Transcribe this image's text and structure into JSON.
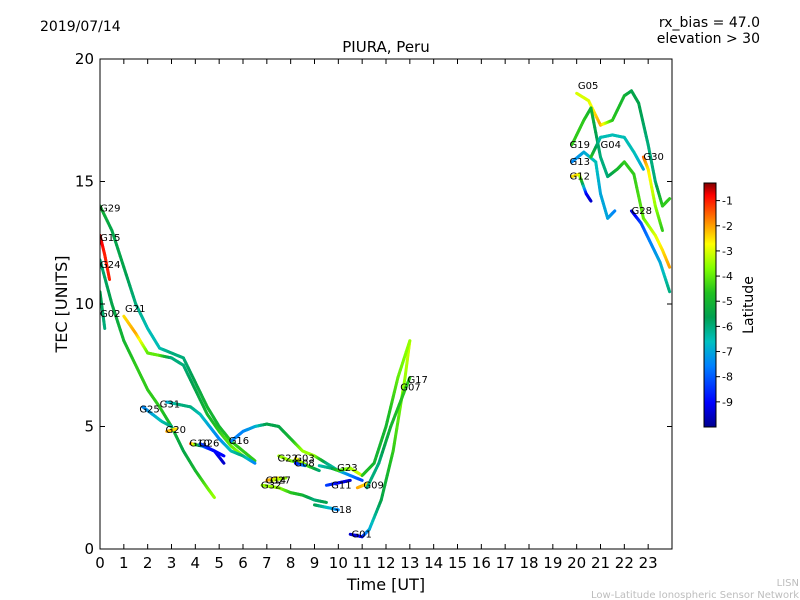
{
  "date": "2019/07/14",
  "rx_bias_text": "rx_bias = 47.0",
  "elevation_text": "elevation > 30",
  "credit_line1": "LISN",
  "credit_line2": "Low-Latitude Ionospheric Sensor Network",
  "chart_data": {
    "type": "scatter",
    "title": "PIURA, Peru",
    "xlabel": "Time [UT]",
    "ylabel": "TEC [UNITS]",
    "xlim": [
      0,
      24
    ],
    "ylim": [
      0,
      20
    ],
    "xticks": [
      0,
      1,
      2,
      3,
      4,
      5,
      6,
      7,
      8,
      9,
      10,
      11,
      12,
      13,
      14,
      15,
      16,
      17,
      18,
      19,
      20,
      21,
      22,
      23
    ],
    "yticks": [
      0,
      5,
      10,
      15,
      20
    ],
    "grid": false,
    "colorbar": {
      "label": "Latitude",
      "range": [
        -10,
        -0.3
      ],
      "ticks": [
        -1,
        -2,
        -3,
        -4,
        -5,
        -6,
        -7,
        -8,
        -9
      ],
      "colormap": [
        "#00008f",
        "#0000ff",
        "#0080ff",
        "#00c0c0",
        "#00a050",
        "#20c020",
        "#80ff00",
        "#ffff00",
        "#ff8000",
        "#ff0000",
        "#800000"
      ]
    },
    "series": [
      {
        "name": "G29",
        "points": [
          [
            0.0,
            14.0,
            -5.5
          ],
          [
            0.5,
            13.0,
            -6.0
          ],
          [
            1.0,
            11.5,
            -6.0
          ],
          [
            1.5,
            10.0,
            -6.5
          ],
          [
            2.0,
            9.0,
            -7.0
          ],
          [
            2.5,
            8.2,
            -7.0
          ],
          [
            3.0,
            8.0,
            -6.5
          ],
          [
            3.5,
            7.8,
            -6.5
          ],
          [
            4.0,
            6.8,
            -6.0
          ],
          [
            4.5,
            5.8,
            -5.5
          ],
          [
            5.0,
            5.0,
            -5.5
          ],
          [
            5.5,
            4.4,
            -5.0
          ],
          [
            6.0,
            4.0,
            -5.0
          ],
          [
            6.5,
            3.6,
            -5.0
          ]
        ],
        "label_at": [
          0.0,
          13.9
        ]
      },
      {
        "name": "G15",
        "points": [
          [
            0.0,
            12.8,
            -1.0
          ],
          [
            0.2,
            12.0,
            -1.5
          ],
          [
            0.4,
            11.0,
            -1.5
          ]
        ],
        "label_at": [
          0.0,
          12.7
        ]
      },
      {
        "name": "G24",
        "points": [
          [
            0.0,
            11.8,
            -6.5
          ],
          [
            0.5,
            10.0,
            -6.0
          ],
          [
            1.0,
            8.5,
            -5.5
          ],
          [
            1.5,
            7.5,
            -5.0
          ],
          [
            2.0,
            6.5,
            -5.0
          ],
          [
            2.5,
            5.8,
            -5.0
          ],
          [
            3.0,
            5.0,
            -5.5
          ],
          [
            3.5,
            4.0,
            -6.0
          ],
          [
            4.0,
            3.2,
            -5.5
          ],
          [
            4.5,
            2.5,
            -4.5
          ],
          [
            4.8,
            2.1,
            -4.0
          ]
        ],
        "label_at": [
          0.0,
          11.6
        ]
      },
      {
        "name": "G02",
        "points": [
          [
            0.0,
            10.5,
            -6.0
          ],
          [
            0.2,
            9.0,
            -6.5
          ]
        ],
        "label_at": [
          0.0,
          9.6
        ]
      },
      {
        "name": "G21",
        "points": [
          [
            1.0,
            9.5,
            -3.0
          ],
          [
            1.5,
            8.8,
            -2.5
          ],
          [
            2.0,
            8.0,
            -4.5
          ],
          [
            2.5,
            7.9,
            -4.5
          ],
          [
            3.0,
            7.8,
            -6.5
          ],
          [
            3.5,
            7.5,
            -6.5
          ],
          [
            4.0,
            6.5,
            -6.0
          ],
          [
            4.5,
            5.5,
            -5.5
          ],
          [
            5.0,
            4.8,
            -5.0
          ],
          [
            5.5,
            4.2,
            -4.5
          ],
          [
            6.0,
            3.8,
            -4.0
          ]
        ],
        "label_at": [
          1.05,
          9.8
        ]
      },
      {
        "name": "G25",
        "points": [
          [
            1.8,
            5.8,
            -8.0
          ],
          [
            2.2,
            5.5,
            -7.5
          ],
          [
            2.6,
            5.2,
            -7.0
          ],
          [
            3.0,
            5.0,
            -6.5
          ]
        ],
        "label_at": [
          1.65,
          5.7
        ]
      },
      {
        "name": "G31",
        "points": [
          [
            2.8,
            6.0,
            -7.5
          ],
          [
            3.3,
            5.9,
            -6.5
          ],
          [
            3.8,
            5.8,
            -6.5
          ],
          [
            4.2,
            5.5,
            -7.0
          ],
          [
            4.6,
            5.0,
            -7.5
          ],
          [
            5.0,
            4.5,
            -8.0
          ],
          [
            5.5,
            4.0,
            -7.0
          ],
          [
            6.0,
            3.8,
            -6.5
          ],
          [
            6.5,
            3.5,
            -8.0
          ]
        ],
        "label_at": [
          2.5,
          5.9
        ]
      },
      {
        "name": "G20",
        "points": [
          [
            2.8,
            4.8,
            -2.5
          ],
          [
            3.2,
            4.9,
            -3.0
          ]
        ],
        "label_at": [
          2.75,
          4.85
        ]
      },
      {
        "name": "G10",
        "points": [
          [
            3.8,
            4.3,
            -1.5
          ],
          [
            4.3,
            4.2,
            -8.0
          ],
          [
            4.8,
            4.0,
            -9.0
          ],
          [
            5.2,
            3.5,
            -9.5
          ]
        ],
        "label_at": [
          3.75,
          4.3
        ]
      },
      {
        "name": "G26",
        "points": [
          [
            4.2,
            4.3,
            -8.5
          ],
          [
            4.8,
            4.0,
            -9.0
          ],
          [
            5.2,
            3.8,
            -9.0
          ]
        ],
        "label_at": [
          4.15,
          4.3
        ]
      },
      {
        "name": "G16",
        "points": [
          [
            5.5,
            4.4,
            -8.0
          ],
          [
            6.0,
            4.8,
            -8.0
          ],
          [
            6.5,
            5.0,
            -7.5
          ],
          [
            7.0,
            5.1,
            -6.0
          ],
          [
            7.5,
            5.0,
            -6.0
          ],
          [
            8.0,
            4.5,
            -5.5
          ],
          [
            8.5,
            4.0,
            -4.0
          ],
          [
            9.0,
            3.8,
            -4.0
          ],
          [
            9.5,
            3.5,
            -6.5
          ],
          [
            10.0,
            3.2,
            -7.0
          ],
          [
            10.5,
            3.0,
            -8.0
          ],
          [
            11.0,
            2.8,
            -8.5
          ]
        ],
        "label_at": [
          5.4,
          4.4
        ]
      },
      {
        "name": "G22",
        "points": [
          [
            7.5,
            3.8,
            -4.0
          ],
          [
            8.0,
            3.6,
            -4.0
          ],
          [
            8.5,
            3.5,
            -6.0
          ]
        ],
        "label_at": [
          7.45,
          3.7
        ]
      },
      {
        "name": "G03",
        "points": [
          [
            8.2,
            3.7,
            -3.0
          ],
          [
            8.7,
            3.4,
            -4.5
          ],
          [
            9.2,
            3.2,
            -6.5
          ]
        ],
        "label_at": [
          8.15,
          3.7
        ]
      },
      {
        "name": "G08",
        "points": [
          [
            8.2,
            3.5,
            -9.0
          ],
          [
            8.6,
            3.4,
            -8.0
          ]
        ],
        "label_at": [
          8.15,
          3.5
        ]
      },
      {
        "name": "G14",
        "points": [
          [
            7.0,
            2.8,
            -2.5
          ],
          [
            7.5,
            2.9,
            -3.0
          ]
        ],
        "label_at": [
          6.95,
          2.8
        ]
      },
      {
        "name": "G27",
        "points": [
          [
            7.2,
            2.8,
            -3.5
          ],
          [
            7.8,
            2.9,
            -4.0
          ]
        ],
        "label_at": [
          7.15,
          2.8
        ]
      },
      {
        "name": "G32",
        "points": [
          [
            6.8,
            2.6,
            -4.0
          ],
          [
            7.5,
            2.5,
            -4.0
          ],
          [
            8.0,
            2.3,
            -5.0
          ],
          [
            8.5,
            2.2,
            -5.5
          ],
          [
            9.0,
            2.0,
            -6.5
          ],
          [
            9.5,
            1.9,
            -6.0
          ]
        ],
        "label_at": [
          6.75,
          2.6
        ]
      },
      {
        "name": "G23",
        "points": [
          [
            9.2,
            3.4,
            -7.0
          ],
          [
            9.7,
            3.3,
            -6.5
          ],
          [
            10.0,
            3.2,
            -5.0
          ],
          [
            10.5,
            3.3,
            -4.0
          ],
          [
            11.0,
            3.0,
            -3.5
          ]
        ],
        "label_at": [
          9.95,
          3.3
        ]
      },
      {
        "name": "G11",
        "points": [
          [
            9.5,
            2.6,
            -8.5
          ],
          [
            10.0,
            2.7,
            -9.0
          ],
          [
            10.5,
            2.8,
            -9.5
          ]
        ],
        "label_at": [
          9.7,
          2.6
        ]
      },
      {
        "name": "G09",
        "points": [
          [
            10.8,
            2.5,
            -2.5
          ],
          [
            11.3,
            2.7,
            -3.0
          ]
        ],
        "label_at": [
          11.05,
          2.6
        ]
      },
      {
        "name": "G18",
        "points": [
          [
            9.0,
            1.8,
            -6.0
          ],
          [
            9.5,
            1.7,
            -7.0
          ],
          [
            10.0,
            1.6,
            -8.0
          ]
        ],
        "label_at": [
          9.7,
          1.6
        ]
      },
      {
        "name": "G01",
        "points": [
          [
            10.5,
            0.6,
            -9.5
          ],
          [
            11.0,
            0.5,
            -9.0
          ],
          [
            11.3,
            0.8,
            -7.5
          ],
          [
            11.8,
            2.0,
            -6.0
          ],
          [
            12.3,
            4.0,
            -5.0
          ],
          [
            12.8,
            7.0,
            -4.0
          ],
          [
            13.0,
            8.5,
            -3.5
          ]
        ],
        "label_at": [
          10.55,
          0.6
        ]
      },
      {
        "name": "G17",
        "points": [
          [
            11.0,
            3.0,
            -5.0
          ],
          [
            11.5,
            3.5,
            -5.5
          ],
          [
            12.0,
            5.0,
            -5.5
          ],
          [
            12.5,
            7.0,
            -4.5
          ],
          [
            13.0,
            8.5,
            -4.0
          ]
        ],
        "label_at": [
          12.9,
          6.9
        ]
      },
      {
        "name": "G07",
        "points": [
          [
            11.2,
            2.5,
            -6.5
          ],
          [
            11.7,
            3.5,
            -6.5
          ],
          [
            12.2,
            5.0,
            -5.5
          ],
          [
            12.8,
            6.5,
            -5.0
          ],
          [
            13.0,
            7.0,
            -5.0
          ]
        ],
        "label_at": [
          12.6,
          6.6
        ]
      },
      {
        "name": "G05",
        "points": [
          [
            20.0,
            18.6,
            -3.5
          ],
          [
            20.5,
            18.3,
            -3.5
          ],
          [
            21.0,
            17.3,
            -2.5
          ],
          [
            21.5,
            17.5,
            -5.0
          ],
          [
            22.0,
            18.5,
            -5.5
          ],
          [
            22.3,
            18.7,
            -6.0
          ],
          [
            22.6,
            18.2,
            -6.0
          ],
          [
            23.0,
            16.5,
            -6.5
          ],
          [
            23.3,
            15.0,
            -6.5
          ],
          [
            23.6,
            14.0,
            -5.0
          ],
          [
            23.9,
            14.3,
            -5.0
          ]
        ],
        "label_at": [
          20.05,
          18.9
        ]
      },
      {
        "name": "G19",
        "points": [
          [
            19.8,
            16.5,
            -5.0
          ],
          [
            20.3,
            17.5,
            -5.0
          ],
          [
            20.6,
            18.0,
            -5.5
          ],
          [
            21.0,
            16.0,
            -6.5
          ],
          [
            21.3,
            15.2,
            -6.5
          ],
          [
            21.7,
            15.5,
            -5.5
          ],
          [
            22.0,
            15.8,
            -5.0
          ],
          [
            22.4,
            15.3,
            -5.0
          ],
          [
            22.8,
            13.5,
            -4.5
          ],
          [
            23.3,
            12.8,
            -3.5
          ],
          [
            23.6,
            12.2,
            -3.0
          ],
          [
            23.9,
            11.5,
            -2.5
          ]
        ],
        "label_at": [
          19.7,
          16.5
        ]
      },
      {
        "name": "G13",
        "points": [
          [
            19.8,
            15.8,
            -8.0
          ],
          [
            20.3,
            16.2,
            -7.5
          ],
          [
            20.8,
            15.8,
            -7.0
          ],
          [
            21.0,
            14.5,
            -7.5
          ],
          [
            21.3,
            13.5,
            -7.5
          ],
          [
            21.6,
            13.8,
            -8.0
          ]
        ],
        "label_at": [
          19.7,
          15.8
        ]
      },
      {
        "name": "G12",
        "points": [
          [
            19.8,
            15.2,
            -3.0
          ],
          [
            20.1,
            15.3,
            -3.0
          ],
          [
            20.4,
            14.5,
            -9.0
          ],
          [
            20.6,
            14.2,
            -9.5
          ]
        ],
        "label_at": [
          19.7,
          15.2
        ]
      },
      {
        "name": "G04",
        "points": [
          [
            20.6,
            16.0,
            -5.0
          ],
          [
            21.0,
            16.8,
            -7.0
          ],
          [
            21.5,
            16.9,
            -7.0
          ],
          [
            22.0,
            16.8,
            -7.0
          ],
          [
            22.4,
            16.2,
            -7.0
          ],
          [
            22.8,
            15.5,
            -7.5
          ]
        ],
        "label_at": [
          21.0,
          16.5
        ]
      },
      {
        "name": "G28",
        "points": [
          [
            22.3,
            13.8,
            -9.5
          ],
          [
            22.7,
            13.3,
            -8.5
          ],
          [
            23.1,
            12.5,
            -8.0
          ],
          [
            23.5,
            11.7,
            -7.5
          ],
          [
            23.9,
            10.5,
            -6.5
          ]
        ],
        "label_at": [
          22.3,
          13.8
        ]
      },
      {
        "name": "G30",
        "points": [
          [
            22.8,
            16.0,
            -2.0
          ],
          [
            23.0,
            15.5,
            -3.0
          ],
          [
            23.3,
            14.0,
            -4.0
          ],
          [
            23.6,
            13.0,
            -5.0
          ]
        ],
        "label_at": [
          22.8,
          16.0
        ]
      }
    ]
  }
}
